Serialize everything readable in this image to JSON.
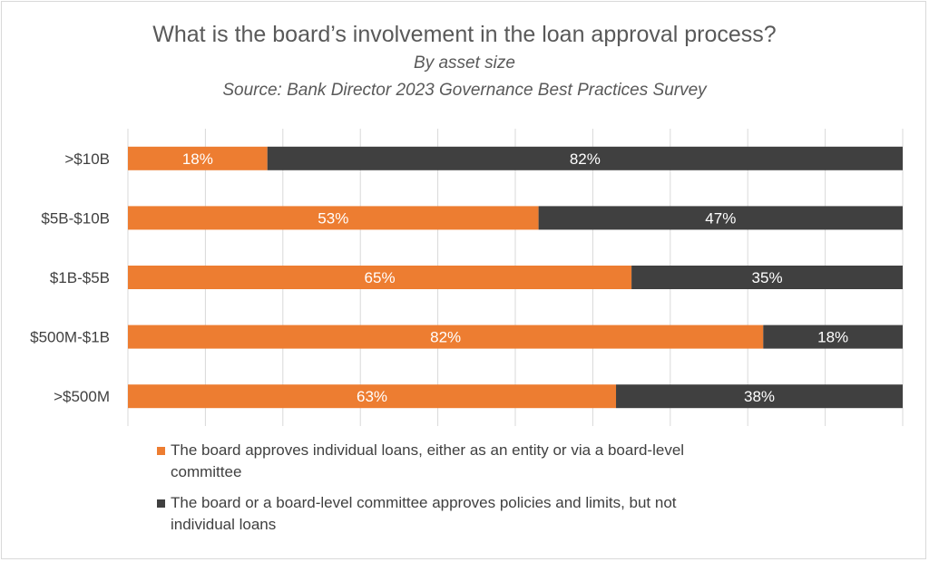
{
  "chart_data": {
    "type": "bar",
    "orientation": "horizontal",
    "stacked": true,
    "title": "What is the board’s involvement in the loan approval process?",
    "subtitle": "By asset size",
    "source": "Source: Bank Director 2023 Governance Best Practices Survey",
    "categories": [
      ">$10B",
      "$5B-$10B",
      "$1B-$5B",
      "$500M-$1B",
      ">$500M"
    ],
    "series": [
      {
        "name": "The board approves individual loans, either as an entity or via a board-level committee",
        "values": [
          18,
          53,
          65,
          82,
          63
        ],
        "labels": [
          "18%",
          "53%",
          "65%",
          "82%",
          "63%"
        ],
        "color": "#ed7d31"
      },
      {
        "name": "The board or a board-level committee approves policies and limits, but not individual loans",
        "values": [
          82,
          47,
          35,
          18,
          38
        ],
        "labels": [
          "82%",
          "47%",
          "35%",
          "18%",
          "38%"
        ],
        "color": "#404040"
      }
    ],
    "xlim": [
      0,
      100
    ],
    "grid": true,
    "legend": "bottom"
  }
}
